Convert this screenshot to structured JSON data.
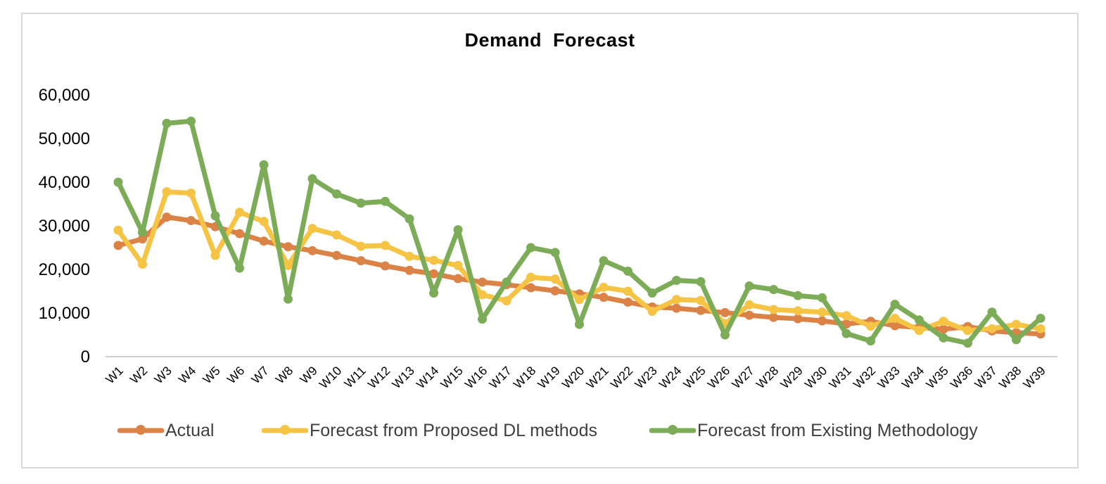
{
  "chart_data": {
    "type": "line",
    "title": "Demand  Forecast",
    "grid": false,
    "legend_position": "bottom",
    "categories": [
      "W1",
      "W2",
      "W3",
      "W4",
      "W5",
      "W6",
      "W7",
      "W8",
      "W9",
      "W10",
      "W11",
      "W12",
      "W13",
      "W14",
      "W15",
      "W16",
      "W17",
      "W18",
      "W19",
      "W20",
      "W21",
      "W22",
      "W23",
      "W24",
      "W25",
      "W26",
      "W27",
      "W28",
      "W29",
      "W30",
      "W31",
      "W32",
      "W33",
      "W34",
      "W35",
      "W36",
      "W37",
      "W38",
      "W39"
    ],
    "y_axis": {
      "min": 0,
      "max": 60000,
      "step": 10000,
      "tick_labels": [
        "60,000",
        "50,000",
        "40,000",
        "30,000",
        "20,000",
        "10,000",
        "0"
      ]
    },
    "series": [
      {
        "name": "Actual",
        "color": "#DB8247",
        "values": [
          25500,
          27000,
          32000,
          31200,
          29800,
          28200,
          26500,
          25200,
          24300,
          23200,
          22000,
          20800,
          19800,
          19000,
          17900,
          17100,
          16500,
          15800,
          15100,
          14400,
          13600,
          12500,
          11400,
          11100,
          10600,
          10100,
          9500,
          9000,
          8700,
          8200,
          7500,
          8100,
          7100,
          6700,
          6300,
          6900,
          5900,
          5500,
          5200
        ]
      },
      {
        "name": "Forecast from Proposed DL methods",
        "color": "#F6C444",
        "values": [
          29000,
          21200,
          37800,
          37500,
          23200,
          33100,
          31000,
          20900,
          29400,
          27900,
          25300,
          25500,
          23000,
          22100,
          20900,
          14200,
          12800,
          18200,
          17800,
          13100,
          15900,
          15000,
          10400,
          13100,
          12900,
          7600,
          11900,
          10800,
          10500,
          10200,
          9400,
          7000,
          8800,
          6000,
          8100,
          6000,
          6400,
          7400,
          6400
        ]
      },
      {
        "name": "Forecast from Existing Methodology",
        "color": "#7CAC57",
        "values": [
          40000,
          28500,
          53500,
          54000,
          32300,
          20300,
          44000,
          13200,
          40800,
          37300,
          35200,
          35600,
          31600,
          14600,
          29100,
          8600,
          17100,
          25000,
          23900,
          7400,
          22000,
          19600,
          14600,
          17500,
          17200,
          5000,
          16200,
          15400,
          14000,
          13500,
          5300,
          3600,
          12000,
          8400,
          4300,
          3100,
          10200,
          3900,
          8800
        ]
      }
    ],
    "axis_color": "#BFBFBF",
    "frame_border_color": "#D9D9D9"
  }
}
